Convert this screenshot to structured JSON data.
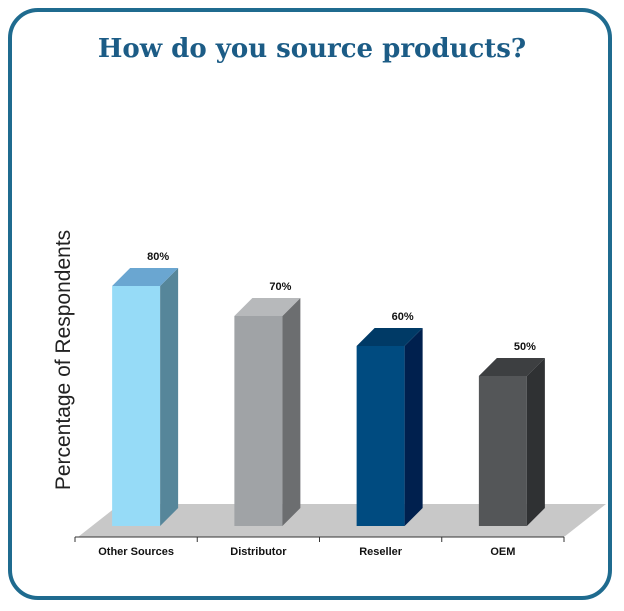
{
  "chart_data": {
    "type": "bar",
    "title": "How do you source products?",
    "xlabel": "",
    "ylabel": "Percentage of Respondents",
    "categories": [
      "Other Sources",
      "Distributor",
      "Reseller",
      "OEM"
    ],
    "values": [
      80,
      70,
      60,
      50
    ],
    "data_labels": [
      "80%",
      "70%",
      "60%",
      "50%"
    ],
    "colors": [
      {
        "front": "#96dbf7",
        "side": "#56869a",
        "top": "#6aa6d1"
      },
      {
        "front": "#a0a3a6",
        "side": "#6c6e70",
        "top": "#b7b9bb"
      },
      {
        "front": "#004b80",
        "side": "#00204e",
        "top": "#003a66"
      },
      {
        "front": "#545658",
        "side": "#2f3133",
        "top": "#3d3f41"
      }
    ],
    "floor_color": "#c8c8c8",
    "ylim": [
      0,
      100
    ],
    "grid": false,
    "style": "3d"
  }
}
